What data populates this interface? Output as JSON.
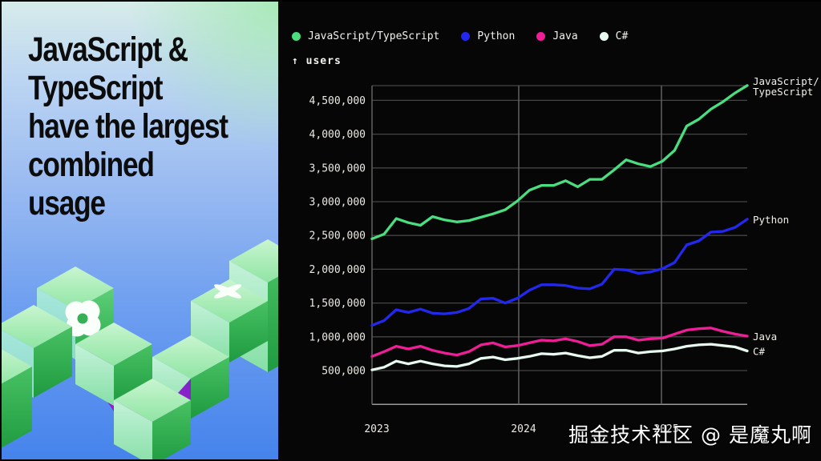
{
  "left_panel": {
    "headline": "JavaScript &\nTypeScript\nhave the largest\ncombined\nusage"
  },
  "watermark": "掘金技术社区 @ 是魔丸啊",
  "chart_data": {
    "type": "line",
    "title": "",
    "xlabel": "",
    "ylabel": "users",
    "ylabel_arrow": "↑",
    "grid": true,
    "legend_position": "top",
    "ylim": [
      0,
      4720000
    ],
    "x_tick_labels": [
      "2023",
      "2024",
      "2025"
    ],
    "y_tick_labels": [
      "4,500,000",
      "4,000,000",
      "3,500,000",
      "3,000,000",
      "2,500,000",
      "2,000,000",
      "1,500,000",
      "1,000,000",
      "500,000"
    ],
    "y_tick_values": [
      4500000,
      4000000,
      3500000,
      3000000,
      2500000,
      2000000,
      1500000,
      1000000,
      500000
    ],
    "series": [
      {
        "name": "JavaScript/TypeScript",
        "color": "#4ade80",
        "end_label_lines": [
          "JavaScript/",
          "TypeScript"
        ],
        "values": [
          2450000,
          2520000,
          2750000,
          2690000,
          2650000,
          2780000,
          2730000,
          2700000,
          2720000,
          2770000,
          2820000,
          2880000,
          3010000,
          3170000,
          3240000,
          3240000,
          3310000,
          3220000,
          3330000,
          3330000,
          3470000,
          3620000,
          3560000,
          3520000,
          3600000,
          3760000,
          4120000,
          4220000,
          4370000,
          4480000,
          4610000,
          4720000
        ]
      },
      {
        "name": "Python",
        "color": "#2328ee",
        "end_label_lines": [
          "Python"
        ],
        "values": [
          1170000,
          1240000,
          1400000,
          1360000,
          1410000,
          1350000,
          1340000,
          1360000,
          1420000,
          1560000,
          1570000,
          1500000,
          1570000,
          1690000,
          1770000,
          1770000,
          1760000,
          1720000,
          1710000,
          1780000,
          2000000,
          1990000,
          1940000,
          1960000,
          2010000,
          2100000,
          2360000,
          2420000,
          2550000,
          2560000,
          2620000,
          2740000
        ]
      },
      {
        "name": "Java",
        "color": "#ee1e96",
        "end_label_lines": [
          "Java"
        ],
        "values": [
          710000,
          780000,
          860000,
          820000,
          860000,
          800000,
          760000,
          730000,
          780000,
          880000,
          910000,
          850000,
          870000,
          910000,
          950000,
          940000,
          970000,
          930000,
          870000,
          890000,
          1000000,
          1000000,
          950000,
          970000,
          980000,
          1040000,
          1100000,
          1120000,
          1130000,
          1080000,
          1040000,
          1010000
        ]
      },
      {
        "name": "C#",
        "color": "#e8faf0",
        "end_label_lines": [
          "C#"
        ],
        "values": [
          510000,
          550000,
          640000,
          600000,
          640000,
          600000,
          570000,
          560000,
          600000,
          680000,
          700000,
          660000,
          680000,
          710000,
          750000,
          740000,
          760000,
          720000,
          690000,
          710000,
          800000,
          800000,
          760000,
          780000,
          790000,
          820000,
          860000,
          880000,
          890000,
          870000,
          850000,
          790000
        ]
      }
    ]
  }
}
